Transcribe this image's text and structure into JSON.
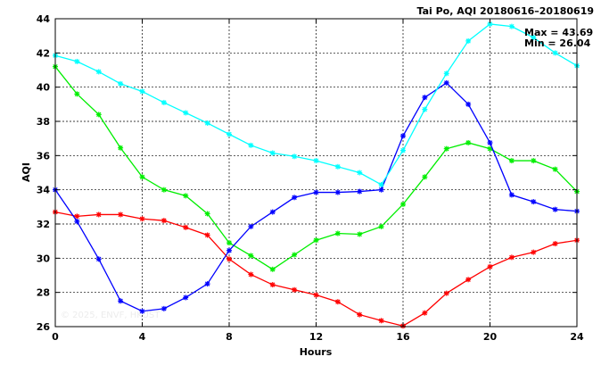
{
  "chart_data": {
    "type": "line",
    "title": "Tai Po, AQI 20180616–20180619",
    "xlabel": "Hours",
    "ylabel": "AQI",
    "xlim": [
      0,
      24
    ],
    "ylim": [
      26,
      44
    ],
    "x_ticks": [
      "0",
      "4",
      "8",
      "12",
      "16",
      "20",
      "24"
    ],
    "y_ticks": [
      "26",
      "28",
      "30",
      "32",
      "34",
      "36",
      "38",
      "40",
      "42",
      "44"
    ],
    "grid": true,
    "annotations": {
      "max": "Max = 43.69",
      "min": "Min = 26.04"
    },
    "watermark": "© 2025, ENVF, HKUST",
    "x": [
      0,
      1,
      2,
      3,
      4,
      5,
      6,
      7,
      8,
      9,
      10,
      11,
      12,
      13,
      14,
      15,
      16,
      17,
      18,
      19,
      20,
      21,
      22,
      23,
      24
    ],
    "series": [
      {
        "color": "#ff0000",
        "values": [
          32.7,
          32.45,
          32.55,
          32.55,
          32.3,
          32.2,
          31.8,
          31.35,
          29.95,
          29.05,
          28.45,
          28.15,
          27.85,
          27.45,
          26.7,
          26.35,
          26.04,
          26.8,
          27.95,
          28.75,
          29.5,
          30.05,
          30.35,
          30.85,
          31.05
        ]
      },
      {
        "color": "#00ee00",
        "values": [
          41.2,
          39.6,
          38.4,
          36.45,
          34.75,
          34.0,
          33.65,
          32.6,
          30.9,
          30.15,
          29.35,
          30.2,
          31.05,
          31.45,
          31.4,
          31.85,
          33.15,
          34.75,
          36.4,
          36.75,
          36.4,
          35.7,
          35.7,
          35.2,
          33.9
        ]
      },
      {
        "color": "#0000ff",
        "values": [
          34.0,
          32.15,
          29.95,
          27.5,
          26.9,
          27.05,
          27.7,
          28.5,
          30.45,
          31.85,
          32.7,
          33.55,
          33.85,
          33.85,
          33.9,
          34.0,
          37.15,
          39.4,
          40.25,
          39.0,
          36.75,
          33.7,
          33.3,
          32.85,
          32.75
        ]
      },
      {
        "color": "#00ffff",
        "values": [
          41.85,
          41.5,
          40.9,
          40.2,
          39.75,
          39.1,
          38.5,
          37.9,
          37.25,
          36.6,
          36.15,
          35.95,
          35.7,
          35.35,
          35.0,
          34.3,
          36.3,
          38.7,
          40.8,
          42.7,
          43.69,
          43.55,
          42.9,
          42.0,
          41.25
        ]
      }
    ]
  }
}
